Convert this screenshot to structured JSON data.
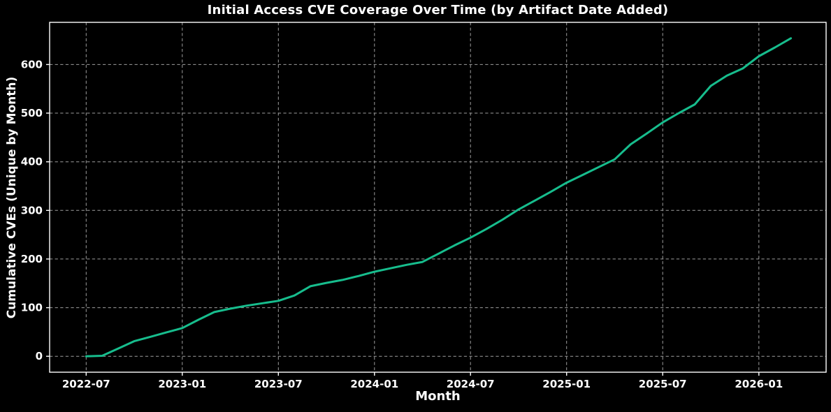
{
  "chart_data": {
    "type": "line",
    "title": "Initial Access CVE Coverage Over Time (by Artifact Date Added)",
    "xlabel": "Month",
    "ylabel": "Cumulative CVEs (Unique by Month)",
    "x": [
      "2022-07",
      "2022-08",
      "2022-09",
      "2022-10",
      "2022-11",
      "2022-12",
      "2023-01",
      "2023-02",
      "2023-03",
      "2023-04",
      "2023-05",
      "2023-06",
      "2023-07",
      "2023-08",
      "2023-09",
      "2023-10",
      "2023-11",
      "2023-12",
      "2024-01",
      "2024-02",
      "2024-03",
      "2024-04",
      "2024-05",
      "2024-06",
      "2024-07",
      "2024-08",
      "2024-09",
      "2024-10",
      "2024-11",
      "2024-12",
      "2025-01",
      "2025-02",
      "2025-03",
      "2025-04",
      "2025-05",
      "2025-06",
      "2025-07",
      "2025-08",
      "2025-09",
      "2025-10",
      "2025-11",
      "2025-12",
      "2026-01",
      "2026-02",
      "2026-03"
    ],
    "series": [
      {
        "name": "cumulative-unique-cves",
        "values": [
          0,
          1,
          16,
          31,
          40,
          49,
          58,
          75,
          91,
          98,
          104,
          109,
          114,
          125,
          144,
          151,
          157,
          165,
          174,
          181,
          188,
          194,
          211,
          228,
          244,
          262,
          281,
          302,
          320,
          338,
          357,
          373,
          389,
          405,
          436,
          458,
          481,
          500,
          518,
          556,
          577,
          592,
          617,
          635,
          654
        ]
      }
    ],
    "xtick_labels": [
      "2022-07",
      "2023-01",
      "2023-07",
      "2024-01",
      "2024-07",
      "2025-01",
      "2025-07",
      "2026-01"
    ],
    "ytick_values": [
      0,
      100,
      200,
      300,
      400,
      500,
      600
    ],
    "xlim_month_index": [
      -2.28,
      46.2
    ],
    "ylim": [
      -32.7,
      686.7
    ],
    "grid": true,
    "grid_style": "dashed",
    "legend": "none",
    "colors": {
      "line": "#17bd8d",
      "background": "#000000",
      "text": "#ffffff",
      "grid": "#b0b0b0",
      "spine": "#ffffff"
    }
  }
}
